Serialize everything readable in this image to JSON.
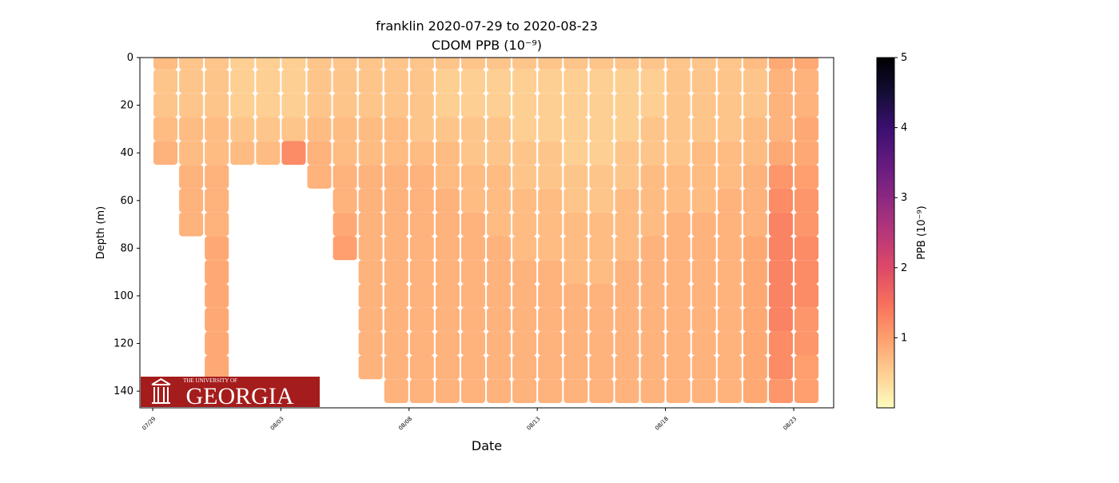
{
  "chart_data": {
    "type": "depth_section",
    "title": "franklin 2020-07-29 to 2020-08-23",
    "subtitle": "CDOM PPB (10⁻⁹)",
    "x_label": "Date",
    "y_label": "Depth (m)",
    "colorbar_label": "PPB (10⁻⁹)",
    "colormap": "magma_r",
    "clim": [
      0,
      5
    ],
    "cticks": [
      1,
      2,
      3,
      4,
      5
    ],
    "ylim": [
      0,
      147
    ],
    "yticks": [
      0,
      20,
      40,
      60,
      80,
      100,
      120,
      140
    ],
    "y_inverted": true,
    "xticks": [
      "07/29",
      "08/03",
      "08/08",
      "08/13",
      "08/18",
      "08/23"
    ],
    "x": [
      "07/29",
      "07/30",
      "07/31",
      "08/01",
      "08/02",
      "08/03",
      "08/04",
      "08/05",
      "08/06",
      "08/07",
      "08/08",
      "08/09",
      "08/10",
      "08/11",
      "08/12",
      "08/13",
      "08/14",
      "08/15",
      "08/16",
      "08/17",
      "08/18",
      "08/19",
      "08/20",
      "08/21",
      "08/22",
      "08/23"
    ],
    "y": [
      0,
      10,
      20,
      30,
      40,
      50,
      60,
      70,
      80,
      90,
      100,
      110,
      120,
      130,
      140
    ],
    "values": [
      [
        0.7,
        0.6,
        0.6,
        0.7,
        0.8,
        null,
        null,
        null,
        null,
        null,
        null,
        null,
        null,
        null,
        null
      ],
      [
        0.6,
        0.6,
        0.6,
        0.7,
        0.7,
        0.8,
        0.8,
        0.8,
        null,
        null,
        null,
        null,
        null,
        null,
        null
      ],
      [
        0.6,
        0.6,
        0.6,
        0.7,
        0.7,
        0.8,
        0.8,
        0.8,
        0.9,
        0.9,
        0.9,
        0.9,
        0.9,
        0.9,
        null
      ],
      [
        0.5,
        0.5,
        0.5,
        0.6,
        0.7,
        null,
        null,
        null,
        null,
        null,
        null,
        null,
        null,
        null,
        null
      ],
      [
        0.5,
        0.5,
        0.5,
        0.6,
        0.7,
        null,
        null,
        null,
        null,
        null,
        null,
        null,
        null,
        null,
        null
      ],
      [
        0.5,
        0.5,
        0.5,
        0.6,
        1.2,
        null,
        null,
        null,
        null,
        null,
        null,
        null,
        null,
        null,
        null
      ],
      [
        0.6,
        0.6,
        0.6,
        0.7,
        0.8,
        0.8,
        null,
        null,
        null,
        null,
        null,
        null,
        null,
        null,
        null
      ],
      [
        0.6,
        0.6,
        0.6,
        0.7,
        0.7,
        0.8,
        0.8,
        0.9,
        1.0,
        null,
        null,
        null,
        null,
        null,
        null
      ],
      [
        0.6,
        0.6,
        0.6,
        0.7,
        0.7,
        0.8,
        0.8,
        0.8,
        0.8,
        0.8,
        0.8,
        0.8,
        0.8,
        0.8,
        null
      ],
      [
        0.6,
        0.6,
        0.6,
        0.7,
        0.7,
        0.8,
        0.8,
        0.8,
        0.8,
        0.8,
        0.8,
        0.8,
        0.8,
        0.8,
        0.8
      ],
      [
        0.6,
        0.6,
        0.6,
        0.6,
        0.7,
        0.8,
        0.8,
        0.8,
        0.8,
        0.8,
        0.8,
        0.8,
        0.8,
        0.8,
        0.8
      ],
      [
        0.6,
        0.5,
        0.5,
        0.6,
        0.7,
        0.7,
        0.8,
        0.8,
        0.8,
        0.8,
        0.8,
        0.8,
        0.8,
        0.8,
        0.8
      ],
      [
        0.6,
        0.5,
        0.5,
        0.6,
        0.6,
        0.7,
        0.7,
        0.8,
        0.8,
        0.8,
        0.8,
        0.8,
        0.8,
        0.8,
        0.8
      ],
      [
        0.6,
        0.5,
        0.5,
        0.6,
        0.6,
        0.7,
        0.7,
        0.7,
        0.8,
        0.8,
        0.8,
        0.8,
        0.8,
        0.8,
        0.8
      ],
      [
        0.6,
        0.5,
        0.5,
        0.5,
        0.6,
        0.6,
        0.7,
        0.7,
        0.7,
        0.8,
        0.8,
        0.8,
        0.8,
        0.8,
        0.8
      ],
      [
        0.6,
        0.5,
        0.5,
        0.5,
        0.6,
        0.6,
        0.7,
        0.7,
        0.7,
        0.8,
        0.8,
        0.8,
        0.8,
        0.8,
        0.8
      ],
      [
        0.6,
        0.5,
        0.5,
        0.5,
        0.5,
        0.6,
        0.6,
        0.7,
        0.7,
        0.7,
        0.8,
        0.8,
        0.8,
        0.8,
        0.8
      ],
      [
        0.6,
        0.5,
        0.5,
        0.5,
        0.5,
        0.6,
        0.6,
        0.7,
        0.7,
        0.7,
        0.8,
        0.8,
        0.8,
        0.8,
        0.8
      ],
      [
        0.6,
        0.5,
        0.5,
        0.5,
        0.6,
        0.6,
        0.7,
        0.7,
        0.7,
        0.8,
        0.8,
        0.8,
        0.8,
        0.8,
        0.8
      ],
      [
        0.6,
        0.5,
        0.5,
        0.6,
        0.6,
        0.7,
        0.7,
        0.7,
        0.8,
        0.8,
        0.8,
        0.8,
        0.8,
        0.8,
        0.8
      ],
      [
        0.6,
        0.6,
        0.6,
        0.6,
        0.6,
        0.7,
        0.7,
        0.8,
        0.8,
        0.8,
        0.8,
        0.8,
        0.8,
        0.8,
        0.8
      ],
      [
        0.6,
        0.6,
        0.6,
        0.6,
        0.7,
        0.7,
        0.7,
        0.8,
        0.8,
        0.8,
        0.8,
        0.8,
        0.8,
        0.8,
        0.8
      ],
      [
        0.6,
        0.6,
        0.6,
        0.6,
        0.7,
        0.7,
        0.8,
        0.8,
        0.8,
        0.8,
        0.8,
        0.8,
        0.8,
        0.8,
        0.8
      ],
      [
        0.7,
        0.6,
        0.6,
        0.7,
        0.7,
        0.8,
        0.8,
        0.8,
        0.9,
        0.9,
        0.9,
        0.9,
        0.9,
        0.9,
        0.9
      ],
      [
        0.9,
        0.8,
        0.8,
        0.8,
        0.9,
        1.1,
        1.2,
        1.3,
        1.3,
        1.3,
        1.3,
        1.3,
        1.2,
        1.2,
        1.1
      ],
      [
        0.9,
        0.8,
        0.8,
        0.9,
        0.9,
        1.0,
        1.1,
        1.1,
        1.2,
        1.2,
        1.2,
        1.1,
        1.1,
        1.0,
        1.0
      ]
    ]
  },
  "logo": {
    "top": "THE UNIVERSITY OF",
    "name": "GEORGIA"
  }
}
